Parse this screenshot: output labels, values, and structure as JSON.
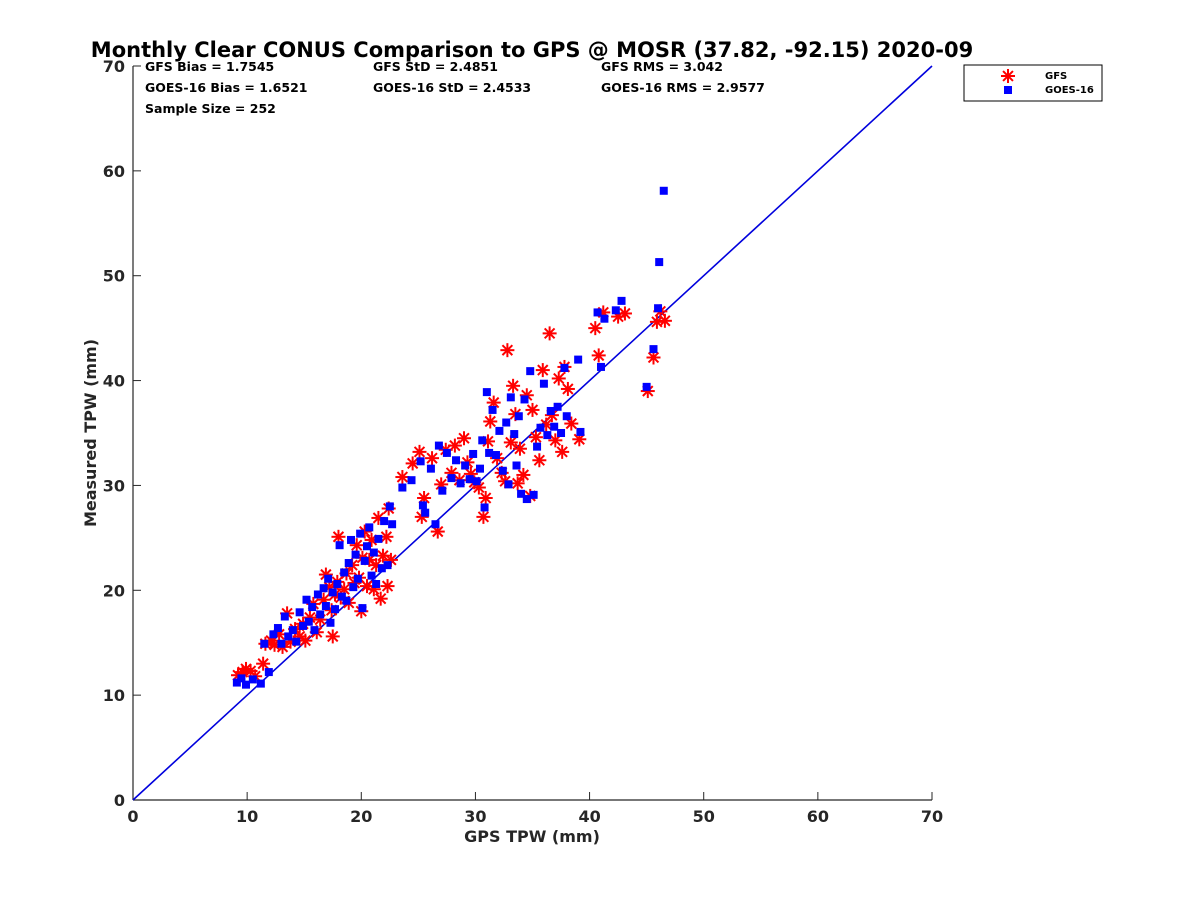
{
  "chart_data": {
    "type": "scatter",
    "title": "Monthly Clear CONUS Comparison to GPS @ MOSR (37.82, -92.15) 2020-09",
    "xlabel": "GPS TPW (mm)",
    "ylabel": "Measured TPW (mm)",
    "xlim": [
      0,
      70
    ],
    "ylim": [
      0,
      70
    ],
    "xticks": [
      "0",
      "10",
      "20",
      "30",
      "40",
      "50",
      "60",
      "70"
    ],
    "yticks": [
      "0",
      "10",
      "20",
      "30",
      "40",
      "50",
      "60",
      "70"
    ],
    "grid": false,
    "legend_position": "top-right outside",
    "stats": {
      "gfs_bias": "GFS Bias = 1.7545",
      "gfs_std": "GFS StD = 2.4851",
      "gfs_rms": "GFS RMS = 3.042",
      "goes_bias": "GOES-16 Bias = 1.6521",
      "goes_std": "GOES-16 StD = 2.4533",
      "goes_rms": "GOES-16 RMS = 2.9577",
      "sample_size": "Sample Size = 252"
    },
    "reference_line": {
      "from": [
        0,
        0
      ],
      "to": [
        70,
        70
      ],
      "color": "#0000dd"
    },
    "series": [
      {
        "name": "GFS",
        "marker": "asterisk",
        "color": "#ff0000",
        "points": [
          [
            9.2,
            11.9
          ],
          [
            9.6,
            12.2
          ],
          [
            9.9,
            12.5
          ],
          [
            10.3,
            12.3
          ],
          [
            10.7,
            11.8
          ],
          [
            11.4,
            13.0
          ],
          [
            11.6,
            14.9
          ],
          [
            12.1,
            15.2
          ],
          [
            12.4,
            14.8
          ],
          [
            12.8,
            15.8
          ],
          [
            13.1,
            14.6
          ],
          [
            13.5,
            17.8
          ],
          [
            13.8,
            15.1
          ],
          [
            14.2,
            16.3
          ],
          [
            14.6,
            15.6
          ],
          [
            14.9,
            16.8
          ],
          [
            15.1,
            15.2
          ],
          [
            15.5,
            17.4
          ],
          [
            15.8,
            18.7
          ],
          [
            16.1,
            16.0
          ],
          [
            16.4,
            17.2
          ],
          [
            16.7,
            19.1
          ],
          [
            16.9,
            21.5
          ],
          [
            17.2,
            20.3
          ],
          [
            17.4,
            18.1
          ],
          [
            17.5,
            15.6
          ],
          [
            17.7,
            19.6
          ],
          [
            17.9,
            20.8
          ],
          [
            18.0,
            25.1
          ],
          [
            18.2,
            19.3
          ],
          [
            18.5,
            20.1
          ],
          [
            18.7,
            21.6
          ],
          [
            18.9,
            18.8
          ],
          [
            19.2,
            22.4
          ],
          [
            19.4,
            20.7
          ],
          [
            19.6,
            24.3
          ],
          [
            19.8,
            21.2
          ],
          [
            20.0,
            18.0
          ],
          [
            20.1,
            23.1
          ],
          [
            20.3,
            25.6
          ],
          [
            20.5,
            20.4
          ],
          [
            20.7,
            22.9
          ],
          [
            20.9,
            24.8
          ],
          [
            21.1,
            20.1
          ],
          [
            21.3,
            22.4
          ],
          [
            21.5,
            26.9
          ],
          [
            21.7,
            19.2
          ],
          [
            21.9,
            23.3
          ],
          [
            22.2,
            25.1
          ],
          [
            22.3,
            20.4
          ],
          [
            22.4,
            27.8
          ],
          [
            22.6,
            22.9
          ],
          [
            23.6,
            30.8
          ],
          [
            24.5,
            32.1
          ],
          [
            25.1,
            33.2
          ],
          [
            25.3,
            27.0
          ],
          [
            25.5,
            28.8
          ],
          [
            26.2,
            32.6
          ],
          [
            26.7,
            25.6
          ],
          [
            27.0,
            30.1
          ],
          [
            27.4,
            33.4
          ],
          [
            27.9,
            31.2
          ],
          [
            28.2,
            33.8
          ],
          [
            28.6,
            30.5
          ],
          [
            29.0,
            34.5
          ],
          [
            29.3,
            32.2
          ],
          [
            29.6,
            31.1
          ],
          [
            29.9,
            30.3
          ],
          [
            30.3,
            29.8
          ],
          [
            30.7,
            27.0
          ],
          [
            30.9,
            28.8
          ],
          [
            31.1,
            34.2
          ],
          [
            31.3,
            36.1
          ],
          [
            31.6,
            37.9
          ],
          [
            31.9,
            32.6
          ],
          [
            32.3,
            31.2
          ],
          [
            32.6,
            30.4
          ],
          [
            32.8,
            42.9
          ],
          [
            33.1,
            34.1
          ],
          [
            33.3,
            39.5
          ],
          [
            33.5,
            36.8
          ],
          [
            33.7,
            30.2
          ],
          [
            33.9,
            33.5
          ],
          [
            34.2,
            31.0
          ],
          [
            34.5,
            38.6
          ],
          [
            34.8,
            29.0
          ],
          [
            35.0,
            37.2
          ],
          [
            35.3,
            34.6
          ],
          [
            35.6,
            32.4
          ],
          [
            35.9,
            41.0
          ],
          [
            36.2,
            35.8
          ],
          [
            36.5,
            44.5
          ],
          [
            36.7,
            36.7
          ],
          [
            37.0,
            34.3
          ],
          [
            37.3,
            40.2
          ],
          [
            37.6,
            33.2
          ],
          [
            37.8,
            41.3
          ],
          [
            38.1,
            39.2
          ],
          [
            38.4,
            35.9
          ],
          [
            39.1,
            34.4
          ],
          [
            40.5,
            45.0
          ],
          [
            40.8,
            42.4
          ],
          [
            41.2,
            46.5
          ],
          [
            42.5,
            46.1
          ],
          [
            43.1,
            46.4
          ],
          [
            45.1,
            39.0
          ],
          [
            45.6,
            42.2
          ],
          [
            45.9,
            45.6
          ],
          [
            46.2,
            46.6
          ],
          [
            46.6,
            45.7
          ]
        ]
      },
      {
        "name": "GOES-16",
        "marker": "square",
        "color": "#0000ff",
        "points": [
          [
            9.1,
            11.2
          ],
          [
            9.5,
            11.6
          ],
          [
            9.9,
            11.0
          ],
          [
            10.5,
            11.5
          ],
          [
            11.2,
            11.1
          ],
          [
            11.5,
            14.9
          ],
          [
            11.9,
            12.2
          ],
          [
            12.3,
            15.8
          ],
          [
            12.7,
            16.4
          ],
          [
            13.0,
            14.9
          ],
          [
            13.3,
            17.5
          ],
          [
            13.6,
            15.6
          ],
          [
            14.0,
            16.2
          ],
          [
            14.3,
            15.1
          ],
          [
            14.6,
            17.9
          ],
          [
            14.9,
            16.6
          ],
          [
            15.2,
            19.1
          ],
          [
            15.4,
            17.0
          ],
          [
            15.7,
            18.4
          ],
          [
            15.9,
            16.2
          ],
          [
            16.2,
            19.6
          ],
          [
            16.4,
            17.7
          ],
          [
            16.7,
            20.2
          ],
          [
            16.9,
            18.5
          ],
          [
            17.1,
            21.1
          ],
          [
            17.3,
            16.9
          ],
          [
            17.5,
            19.8
          ],
          [
            17.7,
            18.2
          ],
          [
            17.9,
            20.6
          ],
          [
            18.1,
            24.3
          ],
          [
            18.3,
            19.4
          ],
          [
            18.5,
            21.7
          ],
          [
            18.7,
            19.0
          ],
          [
            18.9,
            22.6
          ],
          [
            19.1,
            24.8
          ],
          [
            19.3,
            20.3
          ],
          [
            19.5,
            23.4
          ],
          [
            19.7,
            21.1
          ],
          [
            19.9,
            25.4
          ],
          [
            20.1,
            18.3
          ],
          [
            20.3,
            22.8
          ],
          [
            20.5,
            24.2
          ],
          [
            20.7,
            26.0
          ],
          [
            20.9,
            21.4
          ],
          [
            21.1,
            23.6
          ],
          [
            21.3,
            20.6
          ],
          [
            21.5,
            24.9
          ],
          [
            21.8,
            22.1
          ],
          [
            22.0,
            26.6
          ],
          [
            22.3,
            22.4
          ],
          [
            22.5,
            28.0
          ],
          [
            22.7,
            26.3
          ],
          [
            23.6,
            29.8
          ],
          [
            24.4,
            30.5
          ],
          [
            25.2,
            32.3
          ],
          [
            25.4,
            28.1
          ],
          [
            25.6,
            27.4
          ],
          [
            26.1,
            31.6
          ],
          [
            26.5,
            26.3
          ],
          [
            26.8,
            33.8
          ],
          [
            27.1,
            29.5
          ],
          [
            27.5,
            33.1
          ],
          [
            27.9,
            30.7
          ],
          [
            28.3,
            32.4
          ],
          [
            28.7,
            30.2
          ],
          [
            29.1,
            31.9
          ],
          [
            29.5,
            30.6
          ],
          [
            29.8,
            33.0
          ],
          [
            30.1,
            30.4
          ],
          [
            30.4,
            31.6
          ],
          [
            30.6,
            34.3
          ],
          [
            30.8,
            27.9
          ],
          [
            31.0,
            38.9
          ],
          [
            31.2,
            33.1
          ],
          [
            31.5,
            37.2
          ],
          [
            31.8,
            32.9
          ],
          [
            32.1,
            35.2
          ],
          [
            32.4,
            31.4
          ],
          [
            32.7,
            36.0
          ],
          [
            32.9,
            30.1
          ],
          [
            33.1,
            38.4
          ],
          [
            33.4,
            34.9
          ],
          [
            33.6,
            31.9
          ],
          [
            33.8,
            36.6
          ],
          [
            34.0,
            29.2
          ],
          [
            34.3,
            38.2
          ],
          [
            34.5,
            28.7
          ],
          [
            34.8,
            40.9
          ],
          [
            35.1,
            29.1
          ],
          [
            35.4,
            33.7
          ],
          [
            35.7,
            35.5
          ],
          [
            36.0,
            39.7
          ],
          [
            36.3,
            34.8
          ],
          [
            36.6,
            37.1
          ],
          [
            36.9,
            35.6
          ],
          [
            37.2,
            37.5
          ],
          [
            37.5,
            35.0
          ],
          [
            37.8,
            41.2
          ],
          [
            38.0,
            36.6
          ],
          [
            39.0,
            42.0
          ],
          [
            39.2,
            35.1
          ],
          [
            40.7,
            46.5
          ],
          [
            41.0,
            41.3
          ],
          [
            41.3,
            45.9
          ],
          [
            42.3,
            46.7
          ],
          [
            42.8,
            47.6
          ],
          [
            45.0,
            39.4
          ],
          [
            45.6,
            43.0
          ],
          [
            46.0,
            46.9
          ],
          [
            46.1,
            51.3
          ],
          [
            46.5,
            58.1
          ]
        ]
      }
    ]
  }
}
